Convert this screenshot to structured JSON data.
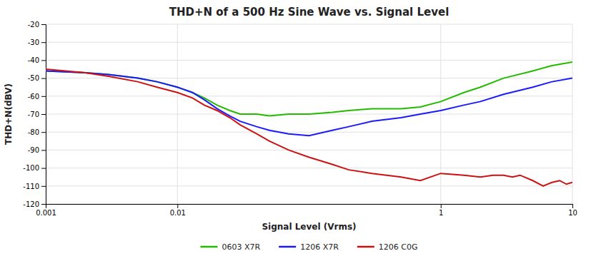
{
  "chart_data": {
    "type": "line",
    "title": "THD+N of a 500 Hz Sine Wave vs. Signal Level",
    "xlabel": "Signal Level (Vrms)",
    "ylabel": "THD+N(dBV)",
    "log": "x",
    "grid": true,
    "legend": "bottom",
    "xlim": [
      0.001,
      10
    ],
    "xticks": [
      0.001,
      0.01,
      1,
      10
    ],
    "ylim": [
      -120,
      -20
    ],
    "yticks": [
      -20,
      -30,
      -40,
      -50,
      -60,
      -70,
      -80,
      -90,
      -100,
      -110,
      -120
    ],
    "series": [
      {
        "name": "0603 X7R",
        "color": "#22bb00",
        "x": [
          0.001,
          0.002,
          0.003,
          0.005,
          0.007,
          0.01,
          0.013,
          0.016,
          0.02,
          0.025,
          0.03,
          0.04,
          0.05,
          0.07,
          0.1,
          0.15,
          0.2,
          0.3,
          0.5,
          0.7,
          1.0,
          1.5,
          2.0,
          3.0,
          5.0,
          7.0,
          10.0
        ],
        "values": [
          -46,
          -47,
          -48,
          -50,
          -52,
          -55,
          -58,
          -61,
          -65,
          -68,
          -70,
          -70,
          -71,
          -70,
          -70,
          -69,
          -68,
          -67,
          -67,
          -66,
          -63,
          -58,
          -55,
          -50,
          -46,
          -43,
          -41
        ]
      },
      {
        "name": "1206 X7R",
        "color": "#1a1aff",
        "x": [
          0.001,
          0.002,
          0.003,
          0.005,
          0.007,
          0.01,
          0.013,
          0.016,
          0.02,
          0.025,
          0.03,
          0.04,
          0.05,
          0.07,
          0.1,
          0.15,
          0.2,
          0.3,
          0.5,
          0.7,
          1.0,
          1.5,
          2.0,
          3.0,
          5.0,
          7.0,
          10.0
        ],
        "values": [
          -46,
          -47,
          -48,
          -50,
          -52,
          -55,
          -58,
          -62,
          -67,
          -71,
          -74,
          -77,
          -79,
          -81,
          -82,
          -79,
          -77,
          -74,
          -72,
          -70,
          -68,
          -65,
          -63,
          -59,
          -55,
          -52,
          -50
        ]
      },
      {
        "name": "1206 C0G",
        "color": "#cc1111",
        "x": [
          0.001,
          0.002,
          0.003,
          0.005,
          0.007,
          0.01,
          0.013,
          0.016,
          0.02,
          0.025,
          0.03,
          0.04,
          0.05,
          0.07,
          0.1,
          0.15,
          0.2,
          0.3,
          0.5,
          0.7,
          1.0,
          1.5,
          2.0,
          2.5,
          3.0,
          3.5,
          4.0,
          5.0,
          6.0,
          7.0,
          8.0,
          9.0,
          10.0
        ],
        "values": [
          -45,
          -47,
          -49,
          -52,
          -55,
          -58,
          -61,
          -65,
          -68,
          -72,
          -76,
          -81,
          -85,
          -90,
          -94,
          -98,
          -101,
          -103,
          -105,
          -107,
          -103,
          -104,
          -105,
          -104,
          -104,
          -105,
          -104,
          -107,
          -110,
          -108,
          -107,
          -109,
          -108
        ]
      }
    ]
  }
}
